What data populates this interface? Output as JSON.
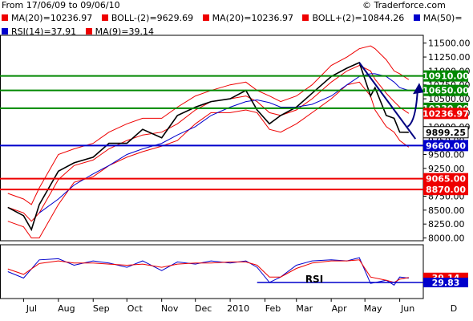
{
  "header": {
    "date_range": "From 17/06/09 to 09/06/10",
    "copyright": "© Traderforce.com",
    "legend_row1": [
      {
        "text": "MA(20)=10236.97",
        "color": "#ee0000"
      },
      {
        "text": "BOLL-(2)=9629.69",
        "color": "#ee0000"
      },
      {
        "text": "MA(20)=10236.97",
        "color": "#ee0000"
      },
      {
        "text": "BOLL+(2)=10844.26",
        "color": "#ee0000"
      },
      {
        "text": "MA(50)=",
        "color": "#0000cc"
      }
    ],
    "legend_row2": [
      {
        "text": "RSI(14)=37.91",
        "color": "#0000cc"
      },
      {
        "text": "MA(9)=39.14",
        "color": "#ee0000"
      }
    ]
  },
  "chart_data": [
    {
      "type": "line",
      "instrument_period": "17/06/09 - 09/06/10",
      "x_tick_labels": [
        "Jul",
        "Aug",
        "Sep",
        "Oct",
        "Nov",
        "Dec",
        "2010",
        "Feb",
        "Mar",
        "Apr",
        "May",
        "Jun",
        "D"
      ],
      "y_ticks": [
        8000,
        8250,
        8500,
        8750,
        9000,
        9250,
        9500,
        9750,
        10000,
        10250,
        10500,
        10750,
        11000,
        11250,
        11500
      ],
      "y_tick_labels": [
        "8000.00",
        "8250.00",
        "8500.00",
        "8750.00",
        "9000.00",
        "9250.00",
        "9500.00",
        "9750.00",
        "10000.00",
        "10250.00",
        "10500.00",
        "10750.00",
        "11000.00",
        "11250.00",
        "11500.00"
      ],
      "ylim": [
        7950,
        11640
      ],
      "x": [
        "2009-06-17",
        "2009-07-01",
        "2009-07-08",
        "2009-07-15",
        "2009-08-01",
        "2009-08-15",
        "2009-09-01",
        "2009-09-15",
        "2009-10-01",
        "2009-10-15",
        "2009-11-01",
        "2009-11-15",
        "2009-12-01",
        "2009-12-15",
        "2010-01-01",
        "2010-01-15",
        "2010-01-25",
        "2010-02-05",
        "2010-02-15",
        "2010-03-01",
        "2010-03-15",
        "2010-04-01",
        "2010-04-15",
        "2010-04-26",
        "2010-05-06",
        "2010-05-10",
        "2010-05-20",
        "2010-05-27",
        "2010-06-01",
        "2010-06-09"
      ],
      "series": [
        {
          "name": "MA(20)",
          "color": "#ee0000",
          "values": [
            8550,
            8450,
            8300,
            8450,
            9050,
            9300,
            9400,
            9600,
            9750,
            9850,
            9900,
            10050,
            10300,
            10450,
            10500,
            10550,
            10450,
            10250,
            10200,
            10300,
            10500,
            10800,
            11000,
            11100,
            11000,
            10850,
            10600,
            10450,
            10350,
            10237
          ]
        },
        {
          "name": "BOLL+(2)",
          "color": "#ee0000",
          "values": [
            8800,
            8700,
            8600,
            8900,
            9500,
            9600,
            9700,
            9900,
            10050,
            10150,
            10150,
            10350,
            10550,
            10650,
            10750,
            10800,
            10650,
            10550,
            10450,
            10550,
            10750,
            11100,
            11250,
            11400,
            11450,
            11400,
            11200,
            11000,
            10950,
            10844
          ]
        },
        {
          "name": "BOLL-(2)",
          "color": "#ee0000",
          "values": [
            8300,
            8200,
            8000,
            8000,
            8600,
            9000,
            9100,
            9300,
            9450,
            9550,
            9650,
            9750,
            10050,
            10250,
            10250,
            10300,
            10250,
            9950,
            9900,
            10050,
            10250,
            10500,
            10750,
            10800,
            10550,
            10300,
            10000,
            9900,
            9750,
            9630
          ]
        },
        {
          "name": "MA(50)",
          "color": "#0000cc",
          "values": [
            null,
            null,
            null,
            8450,
            8700,
            8950,
            9150,
            9300,
            9500,
            9600,
            9700,
            9850,
            10000,
            10200,
            10350,
            10450,
            10480,
            10430,
            10350,
            10350,
            10400,
            10550,
            10750,
            10900,
            10950,
            10950,
            10900,
            10800,
            10700,
            10650
          ]
        },
        {
          "name": "Price",
          "color": "#000000",
          "values": [
            8550,
            8400,
            8150,
            8600,
            9200,
            9350,
            9450,
            9700,
            9700,
            9950,
            9800,
            10200,
            10350,
            10450,
            10500,
            10650,
            10300,
            10050,
            10200,
            10350,
            10600,
            10900,
            11050,
            11150,
            10550,
            10700,
            10200,
            10150,
            9900,
            9899
          ]
        }
      ],
      "horizontal_lines": [
        {
          "value": 10910,
          "label": "10910.00",
          "color": "#008800"
        },
        {
          "value": 10650,
          "label": "10650.00",
          "color": "#008800"
        },
        {
          "value": 10330,
          "label": "10330.00",
          "color": "#008800"
        },
        {
          "value": 9660,
          "label": "9660.00",
          "color": "#0000cc"
        },
        {
          "value": 9065,
          "label": "9065.00",
          "color": "#ee0000"
        },
        {
          "value": 8870,
          "label": "8870.00",
          "color": "#ee0000"
        }
      ],
      "price_labels": [
        {
          "value": 10237,
          "label": "10236.97",
          "color": "#ee0000"
        },
        {
          "value": 9899,
          "label": "9899.25",
          "color": "#000000"
        }
      ]
    },
    {
      "type": "line",
      "title": "RSI",
      "x": [
        "2009-06-17",
        "2009-07-01",
        "2009-07-15",
        "2009-08-01",
        "2009-08-15",
        "2009-09-01",
        "2009-09-15",
        "2009-10-01",
        "2009-10-15",
        "2009-11-01",
        "2009-11-15",
        "2009-12-01",
        "2009-12-15",
        "2010-01-01",
        "2010-01-15",
        "2010-01-25",
        "2010-02-05",
        "2010-02-15",
        "2010-03-01",
        "2010-03-15",
        "2010-04-01",
        "2010-04-15",
        "2010-04-26",
        "2010-05-06",
        "2010-05-20",
        "2010-05-27",
        "2010-06-01",
        "2010-06-09"
      ],
      "ylim": [
        0,
        100
      ],
      "series": [
        {
          "name": "RSI(14)",
          "color": "#0000cc",
          "values": [
            50,
            38,
            72,
            74,
            62,
            70,
            66,
            58,
            70,
            52,
            68,
            64,
            70,
            66,
            70,
            58,
            30,
            40,
            62,
            70,
            72,
            70,
            76,
            28,
            34,
            25,
            40,
            37.91
          ]
        },
        {
          "name": "MA(9)",
          "color": "#ee0000",
          "values": [
            55,
            45,
            65,
            70,
            66,
            66,
            64,
            62,
            64,
            58,
            64,
            66,
            66,
            68,
            68,
            62,
            40,
            40,
            56,
            66,
            70,
            70,
            72,
            40,
            34,
            30,
            36,
            39.14
          ]
        }
      ],
      "horizontal_lines": [
        {
          "value": 29.83,
          "label": "29.83",
          "color": "#0000cc"
        }
      ],
      "value_labels": [
        {
          "value": 39.14,
          "label": "39.14",
          "color": "#ee0000"
        },
        {
          "value": 29.83,
          "label": "29.83",
          "color": "#0000cc"
        }
      ]
    }
  ]
}
